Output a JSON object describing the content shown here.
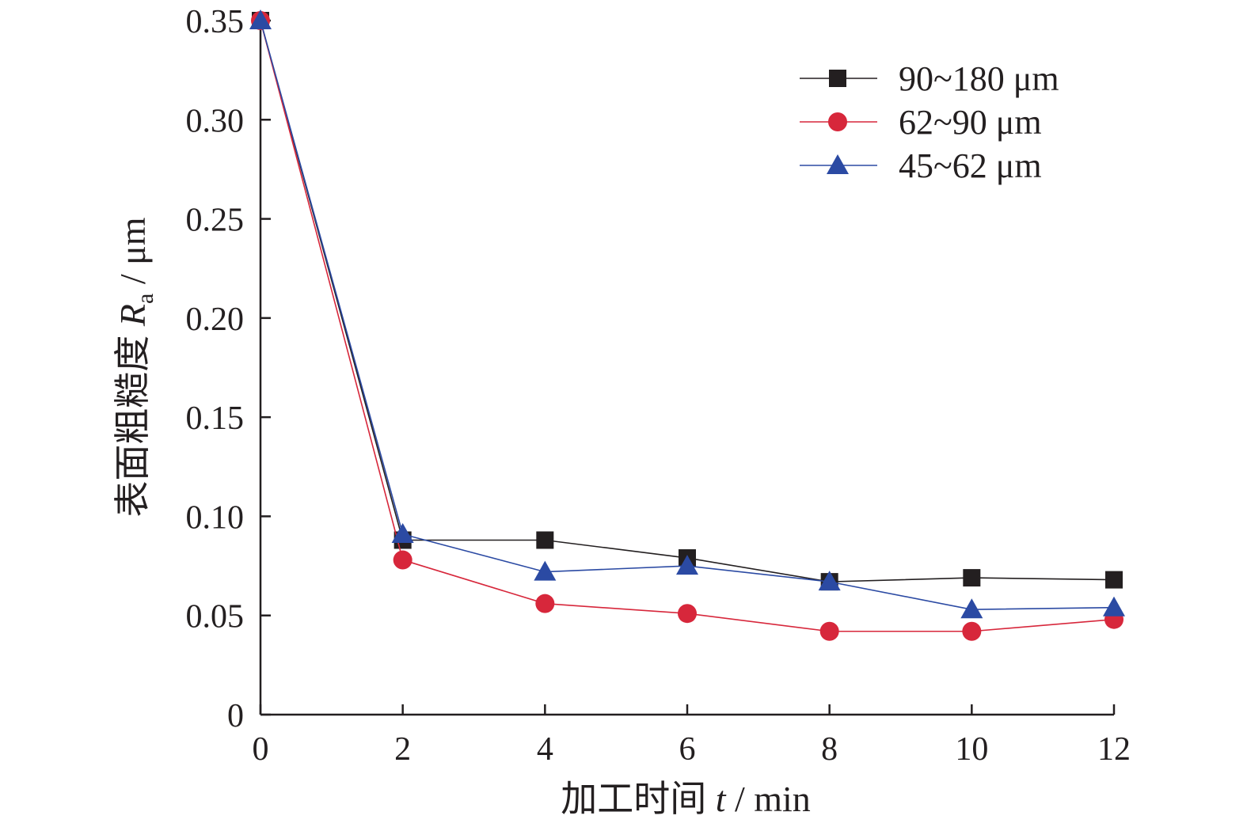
{
  "chart_data": {
    "type": "line",
    "x": [
      0,
      2,
      4,
      6,
      8,
      10,
      12
    ],
    "series": [
      {
        "name": "90~180 μm",
        "marker": "square",
        "color": "#231f20",
        "values": [
          0.35,
          0.088,
          0.088,
          0.079,
          0.067,
          0.069,
          0.068
        ]
      },
      {
        "name": "62~90 μm",
        "marker": "circle",
        "color": "#d7273b",
        "values": [
          0.35,
          0.078,
          0.056,
          0.051,
          0.042,
          0.042,
          0.048
        ]
      },
      {
        "name": "45~62 μm",
        "marker": "triangle",
        "color": "#2b4aa3",
        "values": [
          0.35,
          0.091,
          0.072,
          0.075,
          0.067,
          0.053,
          0.054
        ]
      }
    ],
    "xticks": [
      "0",
      "2",
      "4",
      "6",
      "8",
      "10",
      "12"
    ],
    "yticks": [
      "0",
      "0.05",
      "0.10",
      "0.15",
      "0.20",
      "0.25",
      "0.30",
      "0.35"
    ],
    "xlim": [
      0,
      12
    ],
    "ylim": [
      0,
      0.35
    ],
    "xlabel": {
      "prefix": "加工时间 ",
      "var": "t",
      "suffix": " / min"
    },
    "ylabel": {
      "prefix": "表面粗糙度 ",
      "var": "R",
      "sub": "a",
      "suffix": " / μm"
    },
    "legend_position": "top-right",
    "grid": false
  }
}
